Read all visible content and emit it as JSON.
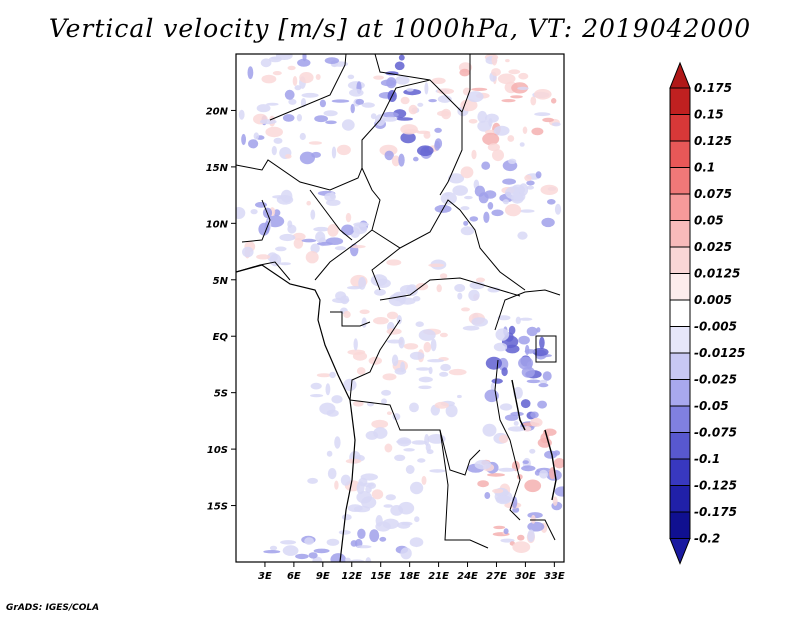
{
  "title": "Vertical velocity [m/s] at 1000hPa, VT: 2019042000",
  "footer": "GrADS: IGES/COLA",
  "map": {
    "region": "Central Africa",
    "lon_range": [
      0,
      34
    ],
    "lat_range": [
      -20,
      25
    ],
    "lat_ticks": [
      {
        "value": 20,
        "label": "20N"
      },
      {
        "value": 15,
        "label": "15N"
      },
      {
        "value": 10,
        "label": "10N"
      },
      {
        "value": 5,
        "label": "5N"
      },
      {
        "value": 0,
        "label": "EQ"
      },
      {
        "value": -5,
        "label": "5S"
      },
      {
        "value": -10,
        "label": "10S"
      },
      {
        "value": -15,
        "label": "15S"
      }
    ],
    "lon_ticks": [
      {
        "value": 3,
        "label": "3E"
      },
      {
        "value": 6,
        "label": "6E"
      },
      {
        "value": 9,
        "label": "9E"
      },
      {
        "value": 12,
        "label": "12E"
      },
      {
        "value": 15,
        "label": "15E"
      },
      {
        "value": 18,
        "label": "18E"
      },
      {
        "value": 21,
        "label": "21E"
      },
      {
        "value": 24,
        "label": "24E"
      },
      {
        "value": 27,
        "label": "27E"
      },
      {
        "value": 30,
        "label": "30E"
      },
      {
        "value": 33,
        "label": "33E"
      }
    ]
  },
  "colorbar": {
    "labels": [
      "0.175",
      "0.15",
      "0.125",
      "0.1",
      "0.075",
      "0.05",
      "0.025",
      "0.0125",
      "0.005",
      "-0.005",
      "-0.0125",
      "-0.025",
      "-0.05",
      "-0.075",
      "-0.1",
      "-0.125",
      "-0.175",
      "-0.2"
    ],
    "colors": [
      "#a01010",
      "#c02020",
      "#d83838",
      "#e85858",
      "#f07878",
      "#f69a9a",
      "#f8baba",
      "#fad6d6",
      "#fdecec",
      "#ffffff",
      "#e6e6fa",
      "#c8c8f4",
      "#a8a8ee",
      "#8080e0",
      "#5858d0",
      "#3838c0",
      "#2020a8",
      "#101090"
    ],
    "top_arrow_color": "#b01818",
    "bottom_arrow_color": "#1a1aa0"
  },
  "field_colors": {
    "weak_down": "#d8d8f6",
    "mod_down": "#a0a0ea",
    "strong_down": "#6060d0",
    "weak_up": "#fad8d8",
    "mod_up": "#f4b0b0"
  }
}
